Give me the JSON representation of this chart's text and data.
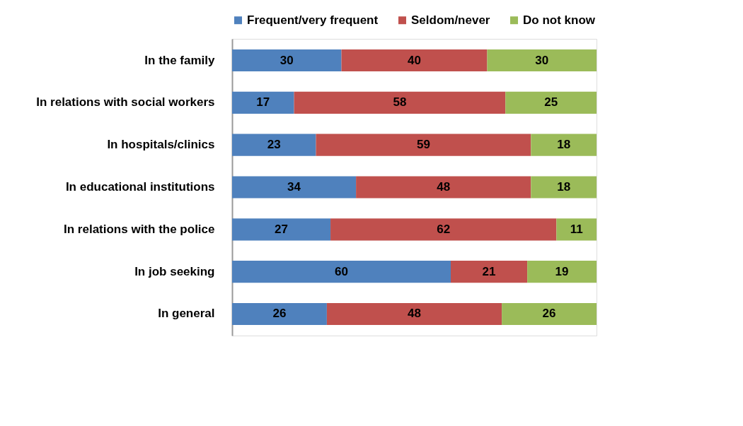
{
  "chart_data": {
    "type": "bar",
    "orientation": "horizontal",
    "stacked": true,
    "data_labels": true,
    "legend": "top",
    "grid": false,
    "tick_labels": "y",
    "categories": [
      "In the family",
      "In relations with social workers",
      "In hospitals/clinics",
      "In educational institutions",
      "In relations with the police",
      "In job seeking",
      "In general"
    ],
    "series": [
      {
        "name": "Frequent/very frequent",
        "color": "#4f81bd",
        "values": [
          30,
          17,
          23,
          34,
          27,
          60,
          26
        ]
      },
      {
        "name": "Seldom/never",
        "color": "#c0504d",
        "values": [
          40,
          58,
          59,
          48,
          62,
          21,
          48
        ]
      },
      {
        "name": "Do not know",
        "color": "#9bbb59",
        "values": [
          30,
          25,
          18,
          18,
          11,
          19,
          26
        ]
      }
    ]
  }
}
